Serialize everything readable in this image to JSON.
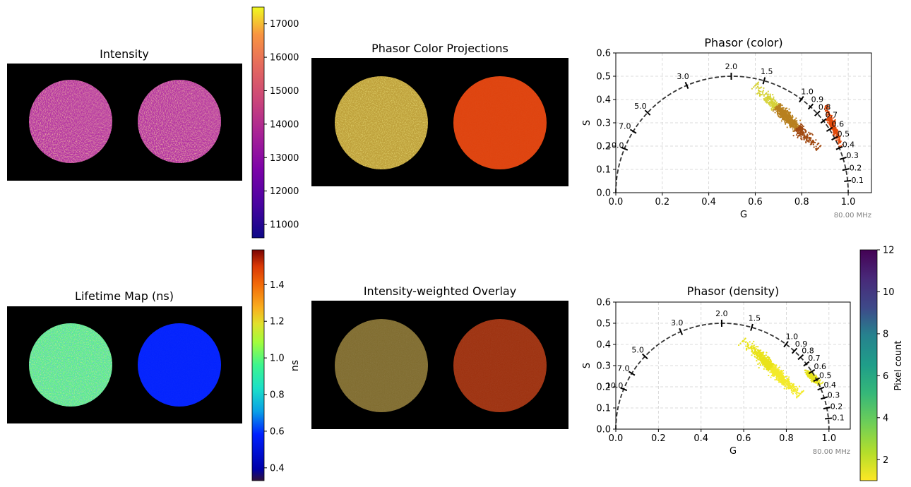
{
  "panels": {
    "intensity_title": "Intensity",
    "phasor_color_projections_title": "Phasor Color Projections",
    "lifetime_title": "Lifetime Map (ns)",
    "overlay_title": "Intensity-weighted Overlay"
  },
  "colorbars": {
    "intensity_ticks": [
      "11000",
      "12000",
      "13000",
      "14000",
      "15000",
      "16000",
      "17000"
    ],
    "lifetime_ticks": [
      "0.4",
      "0.6",
      "0.8",
      "1.0",
      "1.2",
      "1.4"
    ],
    "lifetime_label": "ns",
    "count_ticks": [
      "2",
      "4",
      "6",
      "8",
      "10",
      "12"
    ],
    "count_label": "Pixel count"
  },
  "chart_data": [
    {
      "type": "scatter",
      "title": "Phasor (color)",
      "xlabel": "G",
      "ylabel": "S",
      "xlim": [
        0,
        1.1
      ],
      "ylim": [
        0,
        0.6
      ],
      "x_ticks": [
        "0.0",
        "0.2",
        "0.4",
        "0.6",
        "0.8",
        "1.0"
      ],
      "y_ticks": [
        "0.0",
        "0.1",
        "0.2",
        "0.3",
        "0.4",
        "0.5",
        "0.6"
      ],
      "grid": true,
      "frequency_label": "80.00 MHz",
      "semicircle": {
        "center": [
          0.5,
          0
        ],
        "radius": 0.5
      },
      "lifetime_marks": [
        {
          "label": "0.1",
          "g": 0.9975,
          "s": 0.0502
        },
        {
          "label": "0.2",
          "g": 0.99,
          "s": 0.0995
        },
        {
          "label": "0.3",
          "g": 0.9779,
          "s": 0.1474
        },
        {
          "label": "0.4",
          "g": 0.9618,
          "s": 0.1917
        },
        {
          "label": "0.5",
          "g": 0.942,
          "s": 0.2338
        },
        {
          "label": "0.6",
          "g": 0.9195,
          "s": 0.2718
        },
        {
          "label": "0.7",
          "g": 0.8942,
          "s": 0.3084
        },
        {
          "label": "0.8",
          "g": 0.8672,
          "s": 0.34
        },
        {
          "label": "0.9",
          "g": 0.8385,
          "s": 0.3698
        },
        {
          "label": "1.0",
          "g": 0.7986,
          "s": 0.4011
        },
        {
          "label": "1.5",
          "g": 0.6378,
          "s": 0.4807
        },
        {
          "label": "2.0",
          "g": 0.4968,
          "s": 0.5
        },
        {
          "label": "3.0",
          "g": 0.3054,
          "s": 0.4606
        },
        {
          "label": "5.0",
          "g": 0.1368,
          "s": 0.3436
        },
        {
          "label": "7.0",
          "g": 0.075,
          "s": 0.2634
        },
        {
          "label": "10.0",
          "g": 0.037,
          "s": 0.1889
        }
      ],
      "series": [
        {
          "cluster": "long-lifetime",
          "g_range": [
            0.6,
            0.87
          ],
          "s_range": [
            0.19,
            0.46
          ],
          "colors": [
            "#d6d236",
            "#b8801f",
            "#a14a12"
          ]
        },
        {
          "cluster": "short-lifetime",
          "g_range": [
            0.9,
            0.97
          ],
          "s_range": [
            0.2,
            0.37
          ],
          "colors": [
            "#e24a0b"
          ]
        }
      ]
    },
    {
      "type": "scatter",
      "title": "Phasor (density)",
      "xlabel": "G",
      "ylabel": "S",
      "xlim": [
        0,
        1.1
      ],
      "ylim": [
        0,
        0.6
      ],
      "x_ticks": [
        "0.0",
        "0.2",
        "0.4",
        "0.6",
        "0.8",
        "1.0"
      ],
      "y_ticks": [
        "0.0",
        "0.1",
        "0.2",
        "0.3",
        "0.4",
        "0.5",
        "0.6"
      ],
      "grid": true,
      "frequency_label": "80.00 MHz",
      "semicircle": {
        "center": [
          0.5,
          0
        ],
        "radius": 0.5
      },
      "colorbar": {
        "label": "Pixel count",
        "range": [
          1,
          12
        ]
      },
      "series": [
        {
          "cluster": "long-lifetime",
          "g_range": [
            0.6,
            0.86
          ],
          "s_range": [
            0.16,
            0.42
          ],
          "colors": [
            "#e9e31a",
            "#f3ea2a"
          ]
        },
        {
          "cluster": "short-lifetime",
          "g_range": [
            0.89,
            0.96
          ],
          "s_range": [
            0.21,
            0.28
          ],
          "colors": [
            "#e7e41a"
          ]
        }
      ]
    }
  ]
}
